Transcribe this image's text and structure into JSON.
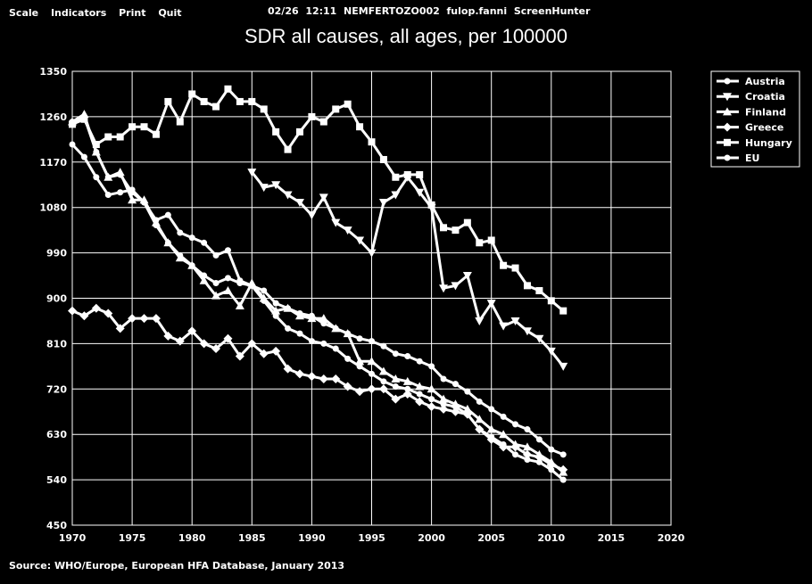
{
  "menu": {
    "items": [
      {
        "label": "Scale"
      },
      {
        "label": "Indicators"
      },
      {
        "label": "Print"
      },
      {
        "label": "Quit"
      }
    ]
  },
  "header": {
    "date": "02/26",
    "time": "12:11",
    "session": "NEMFERTOZO002",
    "user": "fulop.fanni",
    "app": "ScreenHunter"
  },
  "source_note": "Source: WHO/Europe, European HFA Database, January 2013",
  "chart_data": {
    "type": "line",
    "title": "SDR all causes, all ages, per 100000",
    "xlabel": "",
    "ylabel": "",
    "xlim": [
      1970,
      2020
    ],
    "ylim": [
      450,
      1350
    ],
    "xticks": [
      1970,
      1975,
      1980,
      1985,
      1990,
      1995,
      2000,
      2005,
      2010,
      2015,
      2020
    ],
    "yticks": [
      450,
      540,
      630,
      720,
      810,
      900,
      990,
      1080,
      1170,
      1260,
      1350
    ],
    "grid": true,
    "legend_position": "top-right",
    "series": [
      {
        "name": "Austria",
        "marker": "circle",
        "x": [
          1970,
          1971,
          1972,
          1973,
          1974,
          1975,
          1976,
          1977,
          1978,
          1979,
          1980,
          1981,
          1982,
          1983,
          1984,
          1985,
          1986,
          1987,
          1988,
          1989,
          1990,
          1991,
          1992,
          1993,
          1994,
          1995,
          1996,
          1997,
          1998,
          1999,
          2000,
          2001,
          2002,
          2003,
          2004,
          2005,
          2006,
          2007,
          2008,
          2009,
          2010,
          2011
        ],
        "y": [
          1205,
          1180,
          1140,
          1105,
          1110,
          1115,
          1090,
          1055,
          1065,
          1030,
          1020,
          1010,
          985,
          995,
          935,
          925,
          895,
          865,
          840,
          830,
          815,
          810,
          800,
          780,
          765,
          750,
          735,
          725,
          720,
          710,
          700,
          690,
          685,
          670,
          640,
          625,
          610,
          590,
          580,
          575,
          560,
          540
        ]
      },
      {
        "name": "Croatia",
        "marker": "triangle-down",
        "x": [
          1985,
          1986,
          1987,
          1988,
          1989,
          1990,
          1991,
          1992,
          1993,
          1994,
          1995,
          1996,
          1997,
          1998,
          1999,
          2000,
          2001,
          2002,
          2003,
          2004,
          2005,
          2006,
          2007,
          2008,
          2009,
          2010,
          2011
        ],
        "y": [
          1150,
          1120,
          1125,
          1105,
          1090,
          1065,
          1100,
          1050,
          1035,
          1015,
          990,
          1090,
          1105,
          1140,
          1110,
          1080,
          920,
          925,
          945,
          855,
          890,
          845,
          855,
          835,
          820,
          795,
          765
        ]
      },
      {
        "name": "Finland",
        "marker": "triangle-up",
        "x": [
          1970,
          1971,
          1972,
          1973,
          1974,
          1975,
          1976,
          1977,
          1978,
          1979,
          1980,
          1981,
          1982,
          1983,
          1984,
          1985,
          1986,
          1987,
          1988,
          1989,
          1990,
          1991,
          1992,
          1993,
          1994,
          1995,
          1996,
          1997,
          1998,
          1999,
          2000,
          2001,
          2002,
          2003,
          2004,
          2005,
          2006,
          2007,
          2008,
          2009,
          2010,
          2011
        ],
        "y": [
          1250,
          1265,
          1190,
          1140,
          1150,
          1095,
          1095,
          1050,
          1010,
          980,
          965,
          935,
          905,
          915,
          885,
          930,
          900,
          875,
          880,
          865,
          860,
          860,
          840,
          830,
          775,
          775,
          755,
          740,
          735,
          725,
          720,
          700,
          690,
          680,
          660,
          640,
          630,
          610,
          605,
          590,
          575,
          555
        ]
      },
      {
        "name": "Greece",
        "marker": "diamond",
        "x": [
          1970,
          1971,
          1972,
          1973,
          1974,
          1975,
          1976,
          1977,
          1978,
          1979,
          1980,
          1981,
          1982,
          1983,
          1984,
          1985,
          1986,
          1987,
          1988,
          1989,
          1990,
          1991,
          1992,
          1993,
          1994,
          1995,
          1996,
          1997,
          1998,
          1999,
          2000,
          2001,
          2002,
          2003,
          2004,
          2005,
          2006,
          2007,
          2008,
          2009,
          2010,
          2011
        ],
        "y": [
          875,
          865,
          880,
          870,
          840,
          860,
          860,
          860,
          825,
          815,
          835,
          810,
          800,
          820,
          785,
          810,
          790,
          795,
          760,
          750,
          745,
          740,
          740,
          725,
          715,
          720,
          720,
          700,
          710,
          695,
          685,
          680,
          675,
          670,
          640,
          620,
          605,
          605,
          590,
          585,
          570,
          560
        ]
      },
      {
        "name": "Hungary",
        "marker": "square",
        "x": [
          1970,
          1971,
          1972,
          1973,
          1974,
          1975,
          1976,
          1977,
          1978,
          1979,
          1980,
          1981,
          1982,
          1983,
          1984,
          1985,
          1986,
          1987,
          1988,
          1989,
          1990,
          1991,
          1992,
          1993,
          1994,
          1995,
          1996,
          1997,
          1998,
          1999,
          2000,
          2001,
          2002,
          2003,
          2004,
          2005,
          2006,
          2007,
          2008,
          2009,
          2010,
          2011
        ],
        "y": [
          1245,
          1255,
          1205,
          1220,
          1220,
          1240,
          1240,
          1225,
          1290,
          1250,
          1305,
          1290,
          1280,
          1315,
          1290,
          1290,
          1275,
          1230,
          1195,
          1230,
          1260,
          1250,
          1275,
          1285,
          1240,
          1210,
          1175,
          1140,
          1145,
          1145,
          1085,
          1040,
          1035,
          1050,
          1010,
          1015,
          965,
          960,
          925,
          915,
          895,
          875
        ]
      },
      {
        "name": "EU",
        "marker": "circle",
        "x": [
          1970,
          1971,
          1972,
          1973,
          1974,
          1975,
          1976,
          1977,
          1978,
          1979,
          1980,
          1981,
          1982,
          1983,
          1984,
          1985,
          1986,
          1987,
          1988,
          1989,
          1990,
          1991,
          1992,
          1993,
          1994,
          1995,
          1996,
          1997,
          1998,
          1999,
          2000,
          2001,
          2002,
          2003,
          2004,
          2005,
          2006,
          2007,
          2008,
          2009,
          2010,
          2011
        ],
        "y": [
          1250,
          1260,
          1190,
          1140,
          1145,
          1110,
          1090,
          1045,
          1010,
          985,
          965,
          945,
          930,
          940,
          930,
          925,
          915,
          890,
          880,
          870,
          865,
          850,
          840,
          830,
          820,
          815,
          805,
          790,
          785,
          775,
          765,
          740,
          730,
          715,
          695,
          680,
          665,
          650,
          640,
          620,
          600,
          590
        ]
      }
    ]
  }
}
